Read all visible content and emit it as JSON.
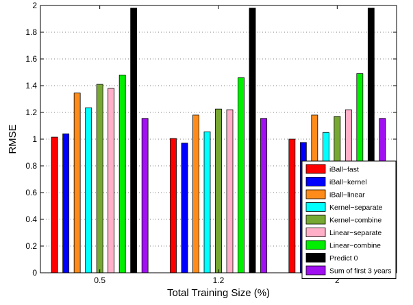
{
  "chart_data": {
    "type": "bar",
    "title": "",
    "xlabel": "Total Training Size (%)",
    "ylabel": "RMSE",
    "ylim": [
      0,
      2
    ],
    "yticks": [
      "0",
      "0.2",
      "0.4",
      "0.6",
      "0.8",
      "1",
      "1.2",
      "1.4",
      "1.6",
      "1.8",
      "2"
    ],
    "categories": [
      "0.5",
      "1.2",
      "2"
    ],
    "grid": "y-dotted",
    "legend_position": "bottom-right",
    "series": [
      {
        "name": "iBall−fast",
        "color": "#ff0000",
        "values": [
          1.015,
          1.005,
          1.0
        ]
      },
      {
        "name": "iBall−kernel",
        "color": "#0000ff",
        "values": [
          1.04,
          0.97,
          0.975
        ]
      },
      {
        "name": "iBall−linear",
        "color": "#ff8c1a",
        "values": [
          1.345,
          1.18,
          1.18
        ]
      },
      {
        "name": "Kernel−separate",
        "color": "#00ffff",
        "values": [
          1.235,
          1.055,
          1.05
        ]
      },
      {
        "name": "Kernel−combine",
        "color": "#76a832",
        "values": [
          1.41,
          1.225,
          1.17
        ]
      },
      {
        "name": "Linear−separate",
        "color": "#ffb0c8",
        "values": [
          1.38,
          1.22,
          1.22
        ]
      },
      {
        "name": "Linear−combine",
        "color": "#00ee00",
        "values": [
          1.48,
          1.46,
          1.49
        ]
      },
      {
        "name": "Predict 0",
        "color": "#000000",
        "values": [
          1.98,
          1.98,
          1.98
        ]
      },
      {
        "name": "Sum of first 3 years",
        "color": "#a010f0",
        "values": [
          1.155,
          1.155,
          1.155
        ]
      }
    ]
  }
}
